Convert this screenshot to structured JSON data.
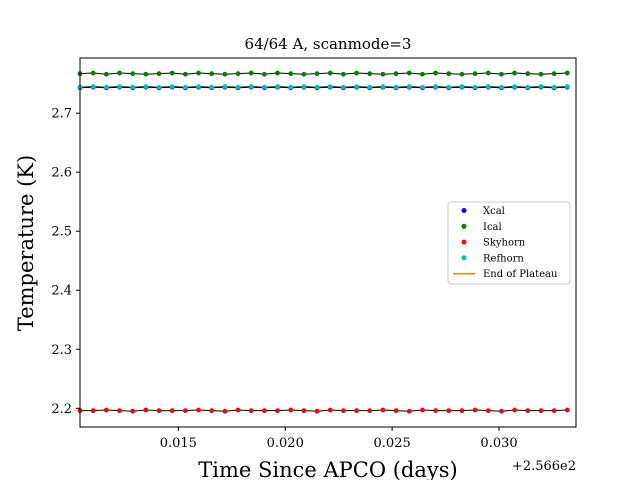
{
  "chart_data": {
    "type": "scatter",
    "title": "64/64 A, scanmode=3",
    "xlabel": "Time Since APCO (days)",
    "ylabel": "Temperature (K)",
    "x_offset_label": "+2.566e2",
    "xlim": [
      0.0104,
      0.0336
    ],
    "ylim": [
      2.1683,
      2.7935
    ],
    "xticks": [
      0.015,
      0.02,
      0.025,
      0.03
    ],
    "xtick_labels": [
      "0.015",
      "0.020",
      "0.025",
      "0.030"
    ],
    "yticks": [
      2.2,
      2.3,
      2.4,
      2.5,
      2.6,
      2.7
    ],
    "ytick_labels": [
      "2.2",
      "2.3",
      "2.4",
      "2.5",
      "2.6",
      "2.7"
    ],
    "grid": false,
    "legend_position": "center-right",
    "series": [
      {
        "name": "Xcal",
        "color": "#0000ff",
        "marker": "dot",
        "x_start": 0.0104,
        "x_step": 0.000616,
        "n_points": 38,
        "base": 2.742,
        "wiggle": [
          0.001,
          0.002,
          0.001,
          0.002
        ]
      },
      {
        "name": "Ical",
        "color": "#008000",
        "marker": "dot",
        "x_start": 0.0104,
        "x_step": 0.000616,
        "n_points": 38,
        "base": 2.767,
        "wiggle": [
          0.0,
          0.001,
          -0.001,
          0.001,
          0.0,
          -0.001
        ]
      },
      {
        "name": "Skyhorn",
        "color": "#ff0000",
        "marker": "dot",
        "x_start": 0.0104,
        "x_step": 0.000616,
        "n_points": 38,
        "base": 2.196,
        "wiggle": [
          0.0,
          0.0,
          0.001,
          0.0,
          -0.001,
          0.001,
          0.0
        ]
      },
      {
        "name": "Refhorn",
        "color": "#00bfbf",
        "marker": "dot",
        "x_start": 0.0104,
        "x_step": 0.000616,
        "n_points": 38,
        "base": 2.744,
        "wiggle": [
          0.0,
          0.001,
          0.0,
          0.001
        ]
      },
      {
        "name": "End of Plateau",
        "color": "#ff7f0e",
        "marker": "line",
        "x": [],
        "y": []
      }
    ]
  }
}
